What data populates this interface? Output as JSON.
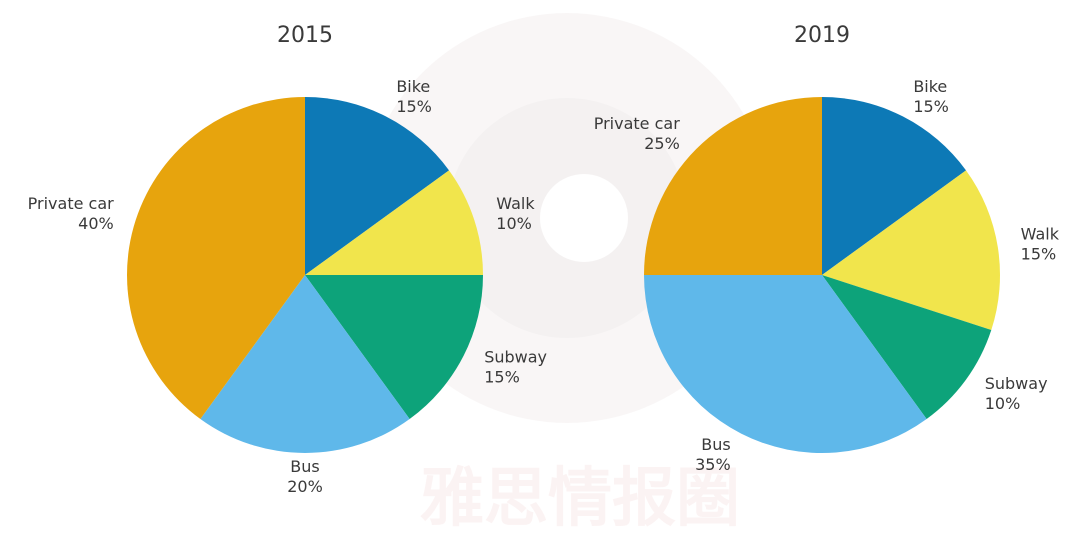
{
  "chart_data": [
    {
      "type": "pie",
      "title": "2015",
      "slices": [
        {
          "label": "Bike",
          "value": 15,
          "value_label": "15%",
          "color": "#0072b2"
        },
        {
          "label": "Walk",
          "value": 10,
          "value_label": "10%",
          "color": "#f0e442"
        },
        {
          "label": "Subway",
          "value": 15,
          "value_label": "15%",
          "color": "#009e73"
        },
        {
          "label": "Bus",
          "value": 20,
          "value_label": "20%",
          "color": "#56b4e9"
        },
        {
          "label": "Private car",
          "value": 40,
          "value_label": "40%",
          "color": "#e69f00"
        }
      ]
    },
    {
      "type": "pie",
      "title": "2019",
      "slices": [
        {
          "label": "Bike",
          "value": 15,
          "value_label": "15%",
          "color": "#0072b2"
        },
        {
          "label": "Walk",
          "value": 15,
          "value_label": "15%",
          "color": "#f0e442"
        },
        {
          "label": "Subway",
          "value": 10,
          "value_label": "10%",
          "color": "#009e73"
        },
        {
          "label": "Bus",
          "value": 35,
          "value_label": "35%",
          "color": "#56b4e9"
        },
        {
          "label": "Private car",
          "value": 25,
          "value_label": "25%",
          "color": "#e69f00"
        }
      ]
    }
  ],
  "watermark": {
    "text": "雅思情报圈"
  }
}
